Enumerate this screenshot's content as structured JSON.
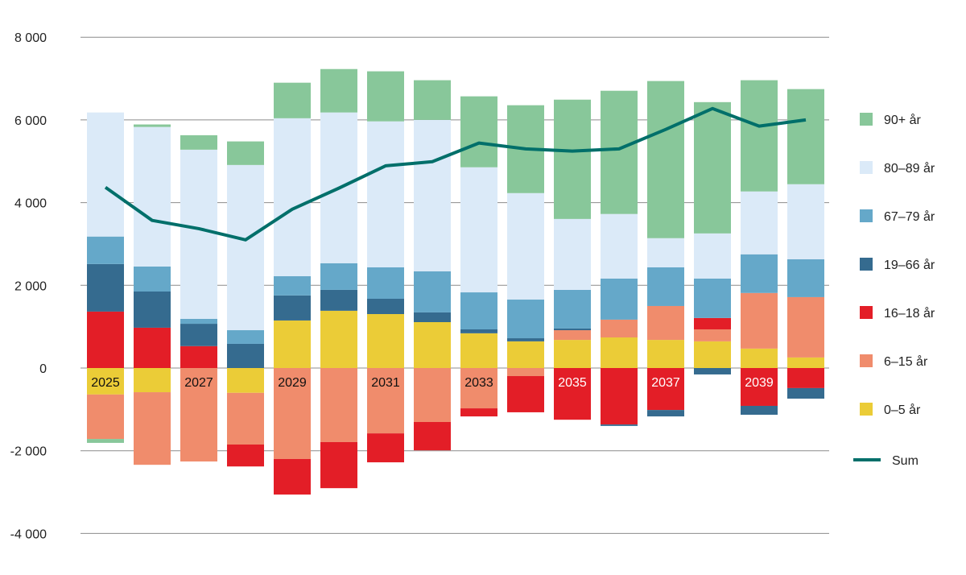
{
  "chart_data": {
    "type": "bar",
    "stacked": true,
    "categories": [
      "2025",
      "2026",
      "2027",
      "2028",
      "2029",
      "2030",
      "2031",
      "2032",
      "2033",
      "2034",
      "2035",
      "2036",
      "2037",
      "2038",
      "2039",
      "2040"
    ],
    "category_labels_shown": [
      "2025",
      "2027",
      "2029",
      "2031",
      "2033",
      "2035",
      "2037",
      "2039"
    ],
    "ylim": [
      -4000,
      8000
    ],
    "yticks": [
      -4000,
      -2000,
      0,
      2000,
      4000,
      6000,
      8000
    ],
    "ytick_labels": [
      "-4 000",
      "-2 000",
      "0",
      "2 000",
      "4 000",
      "6 000",
      "8 000"
    ],
    "grid": true,
    "legend_position": "right",
    "series": [
      {
        "name": "0–5 år",
        "color": "#ebcc37",
        "values": [
          -640,
          -585,
          0,
          -600,
          1150,
          1385,
          1305,
          1110,
          840,
          645,
          680,
          740,
          680,
          645,
          470,
          255
        ]
      },
      {
        "name": "6–15 år",
        "color": "#f08c6c",
        "values": [
          -1075,
          -1755,
          -2260,
          -1250,
          -2200,
          -1790,
          -1580,
          -1305,
          -975,
          -195,
          235,
          430,
          820,
          290,
          1345,
          1460
        ]
      },
      {
        "name": "16–18 år",
        "color": "#e31e27",
        "values": [
          1365,
          975,
          530,
          -530,
          -860,
          -1115,
          -700,
          -685,
          -195,
          -875,
          -1250,
          -1365,
          -1015,
          275,
          -915,
          -485
        ]
      },
      {
        "name": "19–66 år",
        "color": "#356b8f",
        "values": [
          1150,
          875,
          540,
          585,
          605,
          505,
          370,
          235,
          95,
          75,
          40,
          -35,
          -155,
          -155,
          -215,
          -255
        ]
      },
      {
        "name": "67–79 år",
        "color": "#65a8c9",
        "values": [
          665,
          605,
          120,
          330,
          465,
          645,
          760,
          995,
          895,
          935,
          935,
          995,
          935,
          955,
          935,
          915
        ]
      },
      {
        "name": "80–89 år",
        "color": "#dbeaf8",
        "values": [
          3000,
          3375,
          4090,
          3995,
          3820,
          3645,
          3530,
          3660,
          3025,
          2575,
          1715,
          1560,
          705,
          1090,
          1520,
          1815
        ]
      },
      {
        "name": "90+ år",
        "color": "#88c79a",
        "values": [
          -95,
          60,
          350,
          570,
          860,
          1050,
          1210,
          960,
          1715,
          2125,
          2885,
          2980,
          3800,
          3175,
          2690,
          2300
        ]
      }
    ],
    "line": {
      "name": "Sum",
      "color": "#006f6a",
      "values": [
        4370,
        3570,
        3370,
        3100,
        3840,
        4350,
        4890,
        4990,
        5440,
        5300,
        5245,
        5300,
        5770,
        6275,
        5850,
        6000
      ]
    }
  }
}
